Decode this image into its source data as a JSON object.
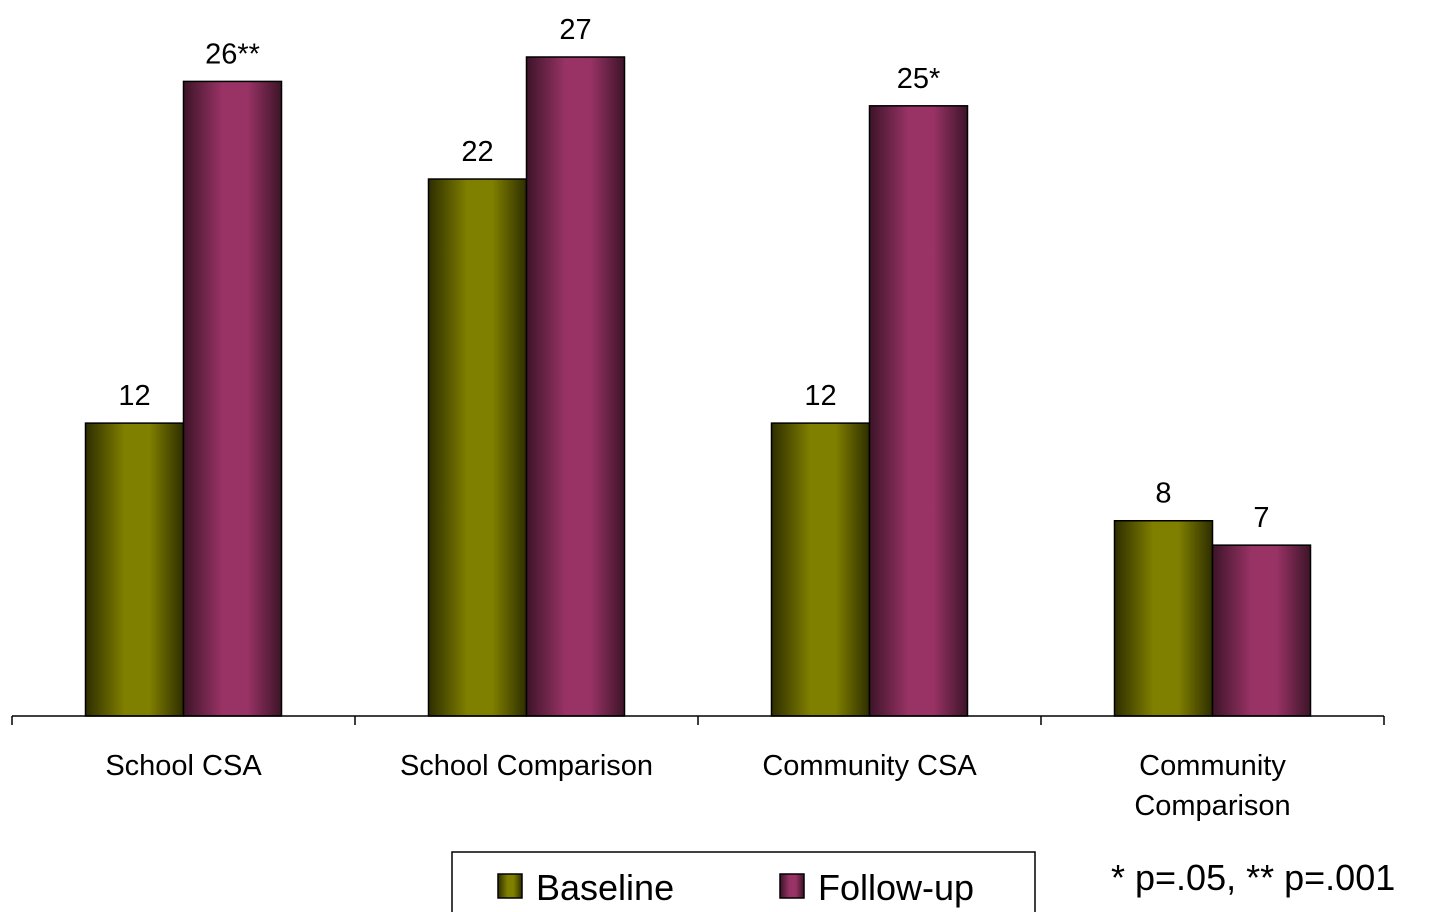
{
  "chart_data": {
    "type": "bar",
    "categories": [
      [
        "School CSA"
      ],
      [
        "School Comparison"
      ],
      [
        "Community CSA"
      ],
      [
        "Community",
        "Comparison"
      ]
    ],
    "series": [
      {
        "name": "Baseline",
        "values": [
          12,
          22,
          12,
          8
        ],
        "labels": [
          "12",
          "22",
          "12",
          "8"
        ],
        "color": "#808000"
      },
      {
        "name": "Follow-up",
        "values": [
          26,
          27,
          25,
          7
        ],
        "labels": [
          "26**",
          "27",
          "25*",
          "7"
        ],
        "color": "#993366"
      }
    ],
    "ylim": [
      0,
      27
    ],
    "gridlines": false,
    "legend_position": "bottom-center",
    "footnote": "* p=.05, ** p=.001"
  }
}
